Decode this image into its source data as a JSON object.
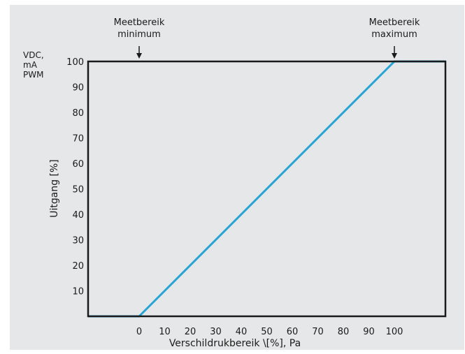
{
  "chart_data": {
    "type": "line",
    "title": "",
    "xlabel": "Verschildrukbereik \\[%], Pa",
    "ylabel": "Uitgang [%]",
    "y_unit_labels": [
      "VDC,",
      "mA",
      "PWM"
    ],
    "xlim": [
      -20,
      120
    ],
    "ylim": [
      0,
      100
    ],
    "x_ticks": [
      0,
      10,
      20,
      30,
      40,
      50,
      60,
      70,
      80,
      90,
      100
    ],
    "x_tick_labels": [
      "0",
      "10",
      "20",
      "30",
      "40",
      "50",
      "60",
      "70",
      "80",
      "90",
      "100"
    ],
    "y_ticks": [
      10,
      20,
      30,
      40,
      50,
      60,
      70,
      80,
      90,
      100
    ],
    "y_tick_labels": [
      "10",
      "20",
      "30",
      "40",
      "50",
      "60",
      "70",
      "80",
      "90",
      "100"
    ],
    "grid": false,
    "legend": "none",
    "series": [
      {
        "x": [
          -20,
          0,
          100,
          120
        ],
        "y": [
          0,
          0,
          100,
          100
        ],
        "color": "#29a3d6"
      }
    ],
    "annotations": [
      {
        "lines": [
          "Meetbereik",
          "minimum"
        ],
        "x": 0,
        "arrow": true
      },
      {
        "lines": [
          "Meetbereik",
          "maximum"
        ],
        "x": 100,
        "arrow": true
      }
    ]
  },
  "colors": {
    "background": "#e6e7e8",
    "line": "#29a3d6",
    "frame": "#1a1a1a"
  }
}
